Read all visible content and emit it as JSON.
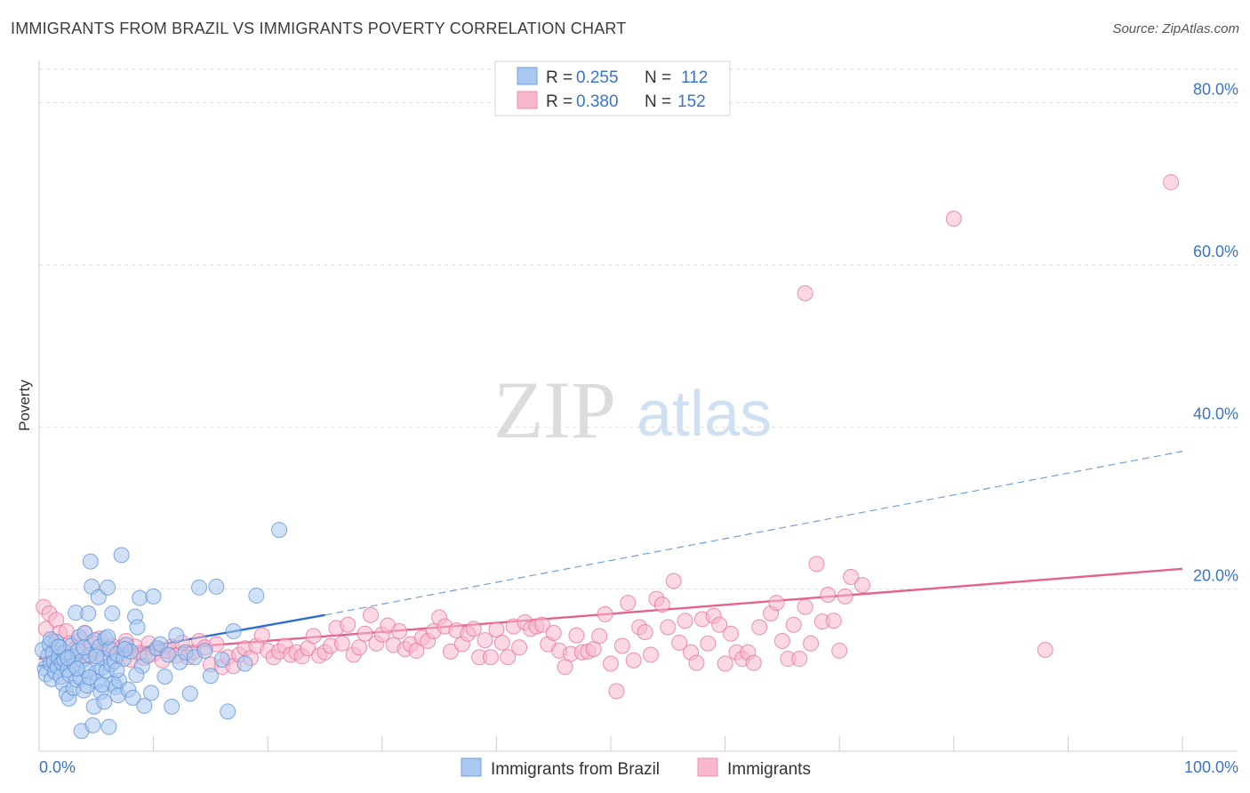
{
  "header": {
    "title": "IMMIGRANTS FROM BRAZIL VS IMMIGRANTS POVERTY CORRELATION CHART",
    "source": "Source: ZipAtlas.com"
  },
  "watermark": {
    "zip": "ZIP",
    "atlas": "atlas"
  },
  "legend": {
    "rows": [
      {
        "r_label": "R =",
        "r_value": "0.255",
        "n_label": "N =",
        "n_value": "112",
        "color": "#a9c8f0"
      },
      {
        "r_label": "R =",
        "r_value": "0.380",
        "n_label": "N =",
        "n_value": "152",
        "color": "#f8b8cc"
      }
    ]
  },
  "chart_data": {
    "type": "scatter",
    "title": "IMMIGRANTS FROM BRAZIL VS IMMIGRANTS POVERTY CORRELATION CHART",
    "xlabel": "",
    "ylabel": "Poverty",
    "xlim": [
      0,
      100
    ],
    "ylim": [
      0,
      85
    ],
    "x_tick_labels": [
      "0.0%",
      "100.0%"
    ],
    "y_ticks": [
      20,
      40,
      60,
      80
    ],
    "y_tick_labels": [
      "20.0%",
      "40.0%",
      "60.0%",
      "80.0%"
    ],
    "grid": true,
    "series": [
      {
        "name": "Immigrants from Brazil",
        "color": "#5a8fd6",
        "fill": "#a9c8f0",
        "trend": {
          "x0": 0,
          "y0": 10.5,
          "x1": 25,
          "y1": 16.8,
          "dash_to": 100,
          "dash_y1": 37
        },
        "points": [
          [
            0.3,
            12.5
          ],
          [
            0.5,
            10.2
          ],
          [
            0.6,
            9.5
          ],
          [
            0.8,
            11.8
          ],
          [
            0.9,
            13.2
          ],
          [
            1.0,
            10.8
          ],
          [
            1.1,
            8.9
          ],
          [
            1.2,
            12.1
          ],
          [
            1.3,
            11.0
          ],
          [
            1.4,
            9.8
          ],
          [
            1.5,
            13.5
          ],
          [
            1.6,
            10.4
          ],
          [
            1.7,
            11.6
          ],
          [
            1.8,
            12.8
          ],
          [
            1.9,
            9.2
          ],
          [
            2.0,
            10.9
          ],
          [
            2.1,
            8.3
          ],
          [
            2.2,
            11.3
          ],
          [
            2.3,
            12.2
          ],
          [
            2.4,
            7.1
          ],
          [
            2.5,
            10.1
          ],
          [
            2.6,
            6.5
          ],
          [
            2.7,
            9.4
          ],
          [
            2.8,
            13.0
          ],
          [
            2.9,
            11.7
          ],
          [
            3.0,
            7.8
          ],
          [
            3.1,
            10.6
          ],
          [
            3.2,
            17.1
          ],
          [
            3.3,
            8.8
          ],
          [
            3.4,
            12.4
          ],
          [
            3.5,
            14.1
          ],
          [
            3.6,
            9.1
          ],
          [
            3.7,
            2.5
          ],
          [
            3.8,
            11.2
          ],
          [
            3.9,
            7.5
          ],
          [
            4.0,
            14.6
          ],
          [
            4.1,
            10.0
          ],
          [
            4.2,
            8.1
          ],
          [
            4.3,
            17.0
          ],
          [
            4.4,
            11.9
          ],
          [
            4.5,
            23.4
          ],
          [
            4.6,
            20.3
          ],
          [
            4.7,
            3.2
          ],
          [
            4.8,
            5.5
          ],
          [
            4.9,
            13.7
          ],
          [
            5.0,
            9.7
          ],
          [
            5.1,
            8.6
          ],
          [
            5.2,
            19.0
          ],
          [
            5.3,
            12.9
          ],
          [
            5.4,
            7.3
          ],
          [
            5.5,
            10.3
          ],
          [
            5.6,
            11.5
          ],
          [
            5.7,
            6.1
          ],
          [
            5.8,
            13.9
          ],
          [
            5.9,
            9.9
          ],
          [
            6.0,
            20.2
          ],
          [
            6.1,
            3.0
          ],
          [
            6.2,
            12.6
          ],
          [
            6.3,
            10.7
          ],
          [
            6.4,
            17.0
          ],
          [
            6.5,
            8.4
          ],
          [
            6.6,
            11.1
          ],
          [
            6.7,
            7.9
          ],
          [
            6.8,
            12.0
          ],
          [
            6.9,
            6.9
          ],
          [
            7.0,
            8.7
          ],
          [
            7.2,
            24.2
          ],
          [
            7.4,
            11.4
          ],
          [
            7.6,
            13.1
          ],
          [
            7.8,
            7.6
          ],
          [
            8.0,
            12.3
          ],
          [
            8.2,
            6.6
          ],
          [
            8.4,
            16.6
          ],
          [
            8.6,
            15.3
          ],
          [
            8.8,
            18.9
          ],
          [
            9.0,
            10.5
          ],
          [
            9.2,
            5.6
          ],
          [
            9.5,
            11.8
          ],
          [
            9.8,
            7.2
          ],
          [
            10.0,
            19.1
          ],
          [
            10.3,
            12.7
          ],
          [
            10.6,
            13.2
          ],
          [
            11.0,
            9.2
          ],
          [
            11.3,
            11.9
          ],
          [
            11.6,
            5.5
          ],
          [
            12.0,
            14.3
          ],
          [
            12.3,
            11.0
          ],
          [
            12.8,
            12.2
          ],
          [
            13.2,
            7.1
          ],
          [
            13.6,
            11.6
          ],
          [
            14.0,
            20.2
          ],
          [
            14.5,
            12.4
          ],
          [
            15.0,
            9.3
          ],
          [
            15.5,
            20.3
          ],
          [
            16.0,
            11.3
          ],
          [
            16.5,
            4.9
          ],
          [
            17.0,
            14.8
          ],
          [
            18.0,
            10.8
          ],
          [
            19.0,
            19.2
          ],
          [
            21.0,
            27.3
          ],
          [
            1.0,
            13.8
          ],
          [
            1.7,
            12.9
          ],
          [
            2.5,
            11.5
          ],
          [
            3.3,
            10.2
          ],
          [
            3.9,
            12.8
          ],
          [
            4.4,
            9.1
          ],
          [
            5.0,
            11.7
          ],
          [
            5.5,
            8.2
          ],
          [
            6.0,
            14.1
          ],
          [
            6.8,
            10.0
          ],
          [
            7.5,
            12.6
          ],
          [
            8.5,
            9.4
          ]
        ]
      },
      {
        "name": "Immigrants",
        "color": "#e66f9b",
        "fill": "#f8b8cc",
        "trend": {
          "x0": 0,
          "y0": 11.4,
          "x1": 100,
          "y1": 22.5
        },
        "points": [
          [
            0.4,
            17.8
          ],
          [
            0.6,
            15.1
          ],
          [
            0.9,
            17.0
          ],
          [
            1.2,
            13.6
          ],
          [
            1.5,
            16.2
          ],
          [
            1.8,
            14.6
          ],
          [
            2.1,
            12.1
          ],
          [
            2.4,
            14.8
          ],
          [
            2.7,
            13.3
          ],
          [
            3.0,
            11.2
          ],
          [
            3.3,
            12.8
          ],
          [
            3.6,
            13.7
          ],
          [
            4.0,
            14.5
          ],
          [
            4.3,
            11.6
          ],
          [
            4.6,
            13.4
          ],
          [
            5.0,
            12.2
          ],
          [
            5.3,
            13.9
          ],
          [
            5.7,
            11.9
          ],
          [
            6.0,
            12.6
          ],
          [
            6.4,
            13.0
          ],
          [
            6.8,
            11.7
          ],
          [
            7.2,
            12.8
          ],
          [
            7.6,
            13.6
          ],
          [
            8.0,
            11.3
          ],
          [
            8.4,
            12.9
          ],
          [
            8.8,
            12.1
          ],
          [
            9.2,
            11.5
          ],
          [
            9.6,
            13.3
          ],
          [
            10.0,
            12.0
          ],
          [
            10.4,
            12.7
          ],
          [
            10.8,
            11.2
          ],
          [
            11.2,
            12.4
          ],
          [
            11.6,
            12.9
          ],
          [
            12.0,
            11.8
          ],
          [
            12.5,
            13.4
          ],
          [
            13.0,
            11.6
          ],
          [
            13.5,
            12.2
          ],
          [
            14.0,
            13.6
          ],
          [
            14.5,
            12.8
          ],
          [
            15.0,
            10.7
          ],
          [
            15.5,
            13.2
          ],
          [
            16.0,
            10.4
          ],
          [
            16.5,
            11.6
          ],
          [
            17.0,
            10.5
          ],
          [
            17.5,
            11.9
          ],
          [
            18.0,
            12.7
          ],
          [
            18.5,
            11.5
          ],
          [
            19.0,
            13.0
          ],
          [
            19.5,
            14.3
          ],
          [
            20.0,
            12.4
          ],
          [
            20.5,
            11.6
          ],
          [
            21.0,
            12.3
          ],
          [
            21.5,
            13.0
          ],
          [
            22.0,
            11.9
          ],
          [
            22.5,
            12.2
          ],
          [
            23.0,
            11.7
          ],
          [
            23.5,
            12.7
          ],
          [
            24.0,
            14.2
          ],
          [
            24.5,
            11.8
          ],
          [
            25.0,
            12.2
          ],
          [
            25.5,
            13.0
          ],
          [
            26.0,
            15.2
          ],
          [
            26.5,
            13.3
          ],
          [
            27.0,
            15.6
          ],
          [
            27.5,
            11.9
          ],
          [
            28.0,
            12.8
          ],
          [
            28.5,
            14.5
          ],
          [
            29.0,
            16.8
          ],
          [
            29.5,
            13.3
          ],
          [
            30.0,
            14.4
          ],
          [
            30.5,
            15.5
          ],
          [
            31.0,
            13.1
          ],
          [
            31.5,
            14.8
          ],
          [
            32.0,
            12.6
          ],
          [
            32.5,
            13.2
          ],
          [
            33.0,
            12.4
          ],
          [
            33.5,
            14.0
          ],
          [
            34.0,
            13.6
          ],
          [
            34.5,
            14.8
          ],
          [
            35.0,
            16.5
          ],
          [
            35.5,
            15.4
          ],
          [
            36.0,
            12.3
          ],
          [
            36.5,
            14.9
          ],
          [
            37.0,
            13.2
          ],
          [
            37.5,
            14.5
          ],
          [
            38.0,
            15.1
          ],
          [
            38.5,
            11.6
          ],
          [
            39.0,
            13.7
          ],
          [
            39.5,
            11.6
          ],
          [
            40.0,
            15.0
          ],
          [
            40.5,
            13.4
          ],
          [
            41.0,
            11.6
          ],
          [
            41.5,
            15.4
          ],
          [
            42.0,
            12.8
          ],
          [
            42.5,
            15.9
          ],
          [
            43.0,
            15.1
          ],
          [
            43.5,
            15.4
          ],
          [
            44.0,
            15.6
          ],
          [
            44.5,
            13.2
          ],
          [
            45.0,
            14.6
          ],
          [
            45.5,
            12.4
          ],
          [
            46.0,
            10.4
          ],
          [
            46.5,
            12.0
          ],
          [
            47.0,
            14.3
          ],
          [
            47.5,
            12.2
          ],
          [
            48.0,
            12.3
          ],
          [
            48.5,
            12.6
          ],
          [
            49.0,
            14.2
          ],
          [
            49.5,
            16.9
          ],
          [
            50.0,
            10.8
          ],
          [
            50.5,
            7.4
          ],
          [
            51.0,
            13.0
          ],
          [
            51.5,
            18.3
          ],
          [
            52.0,
            11.2
          ],
          [
            52.5,
            15.3
          ],
          [
            53.0,
            14.7
          ],
          [
            53.5,
            11.9
          ],
          [
            54.0,
            18.8
          ],
          [
            54.5,
            18.1
          ],
          [
            55.0,
            15.3
          ],
          [
            55.5,
            21.0
          ],
          [
            56.0,
            13.4
          ],
          [
            56.5,
            16.1
          ],
          [
            57.0,
            12.2
          ],
          [
            57.5,
            10.9
          ],
          [
            58.0,
            16.3
          ],
          [
            58.5,
            13.3
          ],
          [
            59.0,
            16.7
          ],
          [
            59.5,
            15.6
          ],
          [
            60.0,
            10.8
          ],
          [
            60.5,
            14.5
          ],
          [
            61.0,
            12.2
          ],
          [
            61.5,
            11.4
          ],
          [
            62.0,
            12.2
          ],
          [
            62.5,
            10.9
          ],
          [
            63.0,
            15.3
          ],
          [
            64.0,
            17.0
          ],
          [
            64.5,
            18.3
          ],
          [
            65.0,
            13.6
          ],
          [
            65.5,
            11.4
          ],
          [
            66.0,
            15.6
          ],
          [
            66.5,
            11.4
          ],
          [
            67.0,
            17.8
          ],
          [
            67.5,
            13.3
          ],
          [
            68.0,
            23.1
          ],
          [
            68.5,
            16.0
          ],
          [
            69.0,
            19.3
          ],
          [
            69.5,
            16.1
          ],
          [
            70.0,
            12.4
          ],
          [
            70.5,
            19.1
          ],
          [
            71.0,
            21.5
          ],
          [
            72.0,
            20.5
          ],
          [
            88.0,
            12.5
          ],
          [
            67.0,
            56.5
          ],
          [
            80.0,
            65.7
          ],
          [
            99.0,
            70.2
          ]
        ]
      }
    ]
  },
  "bottom_legend": [
    {
      "label": "Immigrants from Brazil",
      "color": "#a9c8f0"
    },
    {
      "label": "Immigrants",
      "color": "#f8b8cc"
    }
  ]
}
